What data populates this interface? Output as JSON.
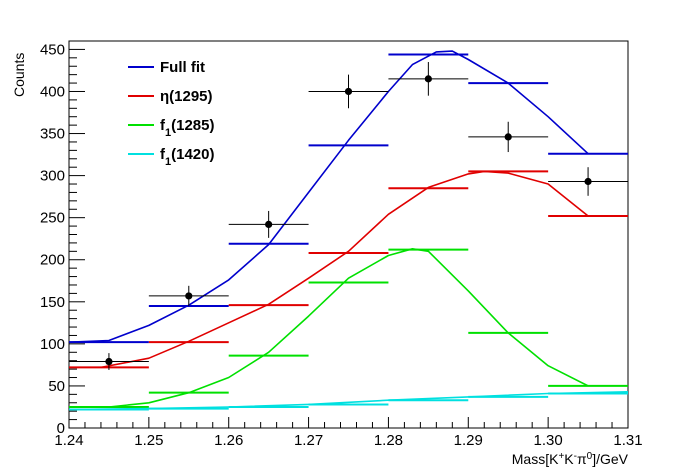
{
  "chart_data": {
    "type": "line",
    "xlabel": "Mass[K+K-π0]/GeV",
    "ylabel": "Counts",
    "xlim": [
      1.24,
      1.31
    ],
    "ylim": [
      0,
      460
    ],
    "x_ticks": [
      1.24,
      1.25,
      1.26,
      1.27,
      1.28,
      1.29,
      1.3,
      1.31
    ],
    "x_tick_labels": [
      "1.24",
      "1.25",
      "1.26",
      "1.27",
      "1.28",
      "1.29",
      "1.30",
      "1.31"
    ],
    "y_ticks": [
      0,
      50,
      100,
      150,
      200,
      250,
      300,
      350,
      400,
      450
    ],
    "y_tick_labels": [
      "0",
      "50",
      "100",
      "150",
      "200",
      "250",
      "300",
      "350",
      "400",
      "450"
    ],
    "legend": [
      {
        "label": "Full fit",
        "color": "#0000cc",
        "prefix": "Full fit",
        "sub": "",
        "suffix": ""
      },
      {
        "label": "η(1295)",
        "color": "#e00000",
        "prefix": "η(1295)",
        "sub": "",
        "suffix": ""
      },
      {
        "label": "f1(1285)",
        "color": "#00e000",
        "prefix": "f",
        "sub": "1",
        "suffix": "(1285)"
      },
      {
        "label": "f1(1420)",
        "color": "#00e0e0",
        "prefix": "f",
        "sub": "1",
        "suffix": "(1420)"
      }
    ],
    "data_points": {
      "name": "Data",
      "x": [
        1.245,
        1.255,
        1.265,
        1.275,
        1.285,
        1.295,
        1.305
      ],
      "y": [
        79,
        157,
        242,
        400,
        415,
        346,
        293
      ],
      "xerr": [
        0.005,
        0.005,
        0.005,
        0.005,
        0.005,
        0.005,
        0.005
      ],
      "yerr": [
        10,
        12,
        16,
        20,
        20,
        18,
        17
      ]
    },
    "bin_edges": [
      1.24,
      1.25,
      1.26,
      1.27,
      1.28,
      1.29,
      1.3,
      1.31
    ],
    "series": [
      {
        "name": "Full fit",
        "color": "#0000cc",
        "bin_values": [
          102,
          145,
          219,
          336,
          444,
          410,
          326
        ],
        "curve_x": [
          1.24,
          1.245,
          1.25,
          1.255,
          1.26,
          1.265,
          1.27,
          1.275,
          1.28,
          1.283,
          1.286,
          1.288,
          1.29,
          1.295,
          1.3,
          1.305
        ],
        "curve_y": [
          102,
          104,
          122,
          146,
          176,
          218,
          280,
          342,
          400,
          432,
          447,
          448,
          438,
          410,
          370,
          326
        ]
      },
      {
        "name": "η(1295)",
        "color": "#e00000",
        "bin_values": [
          72,
          102,
          146,
          208,
          285,
          305,
          252
        ],
        "curve_x": [
          1.244,
          1.25,
          1.255,
          1.26,
          1.265,
          1.27,
          1.275,
          1.28,
          1.285,
          1.29,
          1.292,
          1.295,
          1.3,
          1.305
        ],
        "curve_y": [
          72,
          83,
          103,
          125,
          147,
          178,
          210,
          254,
          286,
          302,
          305,
          303,
          290,
          252
        ]
      },
      {
        "name": "f1(1285)",
        "color": "#00e000",
        "bin_values": [
          25,
          42,
          86,
          173,
          212,
          113,
          50
        ],
        "curve_x": [
          1.24,
          1.245,
          1.25,
          1.255,
          1.26,
          1.265,
          1.27,
          1.275,
          1.28,
          1.283,
          1.285,
          1.29,
          1.295,
          1.3,
          1.305
        ],
        "curve_y": [
          25,
          25,
          30,
          42,
          60,
          90,
          133,
          178,
          205,
          213,
          210,
          163,
          113,
          74,
          50
        ]
      },
      {
        "name": "f1(1420)",
        "color": "#00e0e0",
        "bin_values": [
          22,
          23,
          25,
          28,
          33,
          37,
          41
        ],
        "curve_x": [
          1.24,
          1.25,
          1.26,
          1.27,
          1.28,
          1.29,
          1.3,
          1.31
        ],
        "curve_y": [
          22,
          23,
          25,
          28,
          33,
          37,
          41,
          43
        ]
      }
    ]
  }
}
